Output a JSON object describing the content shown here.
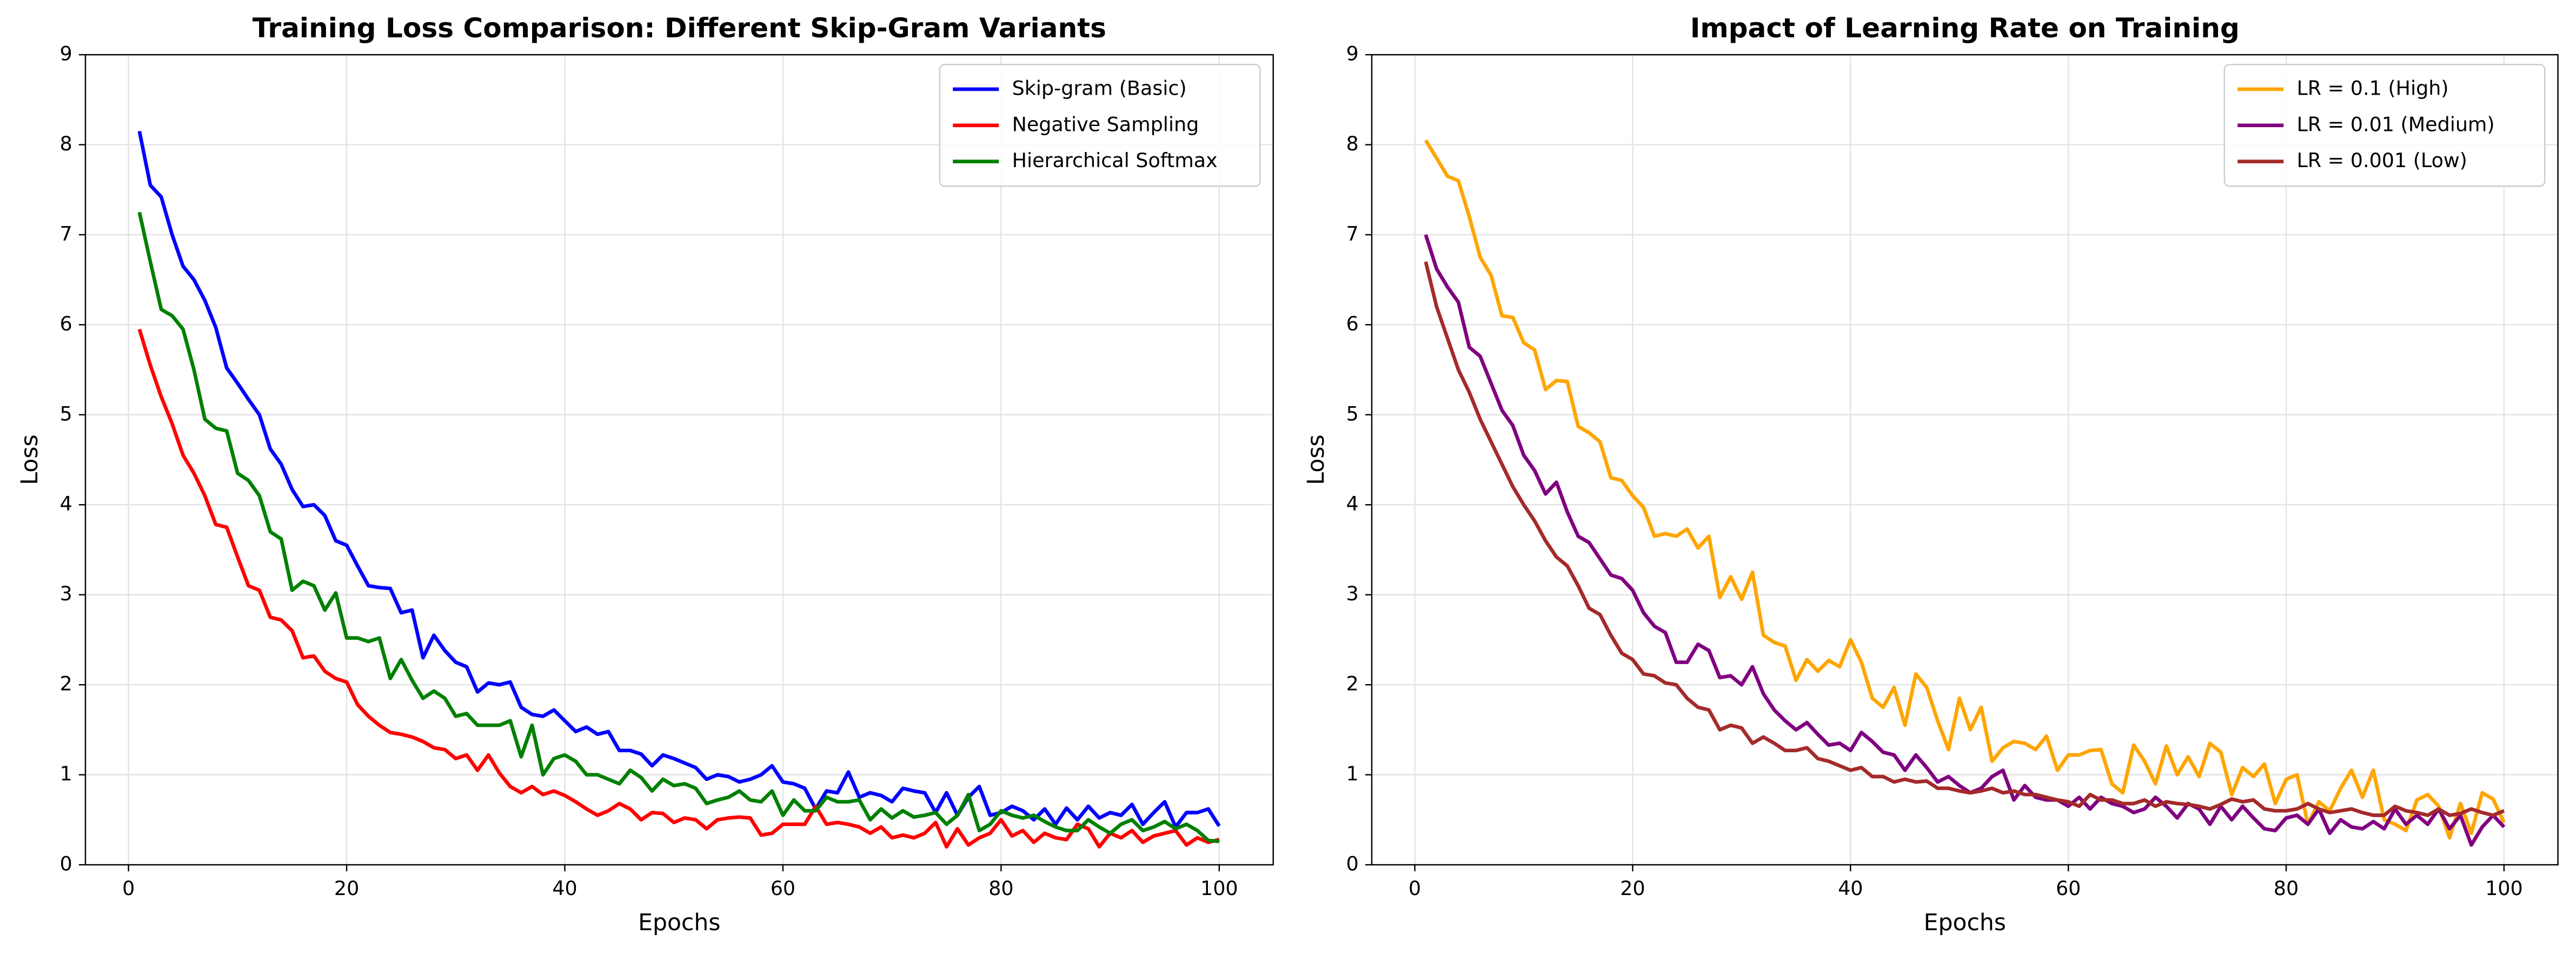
{
  "chart_data": [
    {
      "type": "line",
      "title": "Training Loss Comparison: Different Skip-Gram Variants",
      "x_label": "Epochs",
      "y_label": "Loss",
      "x": [
        1,
        2,
        3,
        4,
        5,
        6,
        7,
        8,
        9,
        10,
        11,
        12,
        13,
        14,
        15,
        16,
        17,
        18,
        19,
        20,
        21,
        22,
        23,
        24,
        25,
        26,
        27,
        28,
        29,
        30,
        31,
        32,
        33,
        34,
        35,
        36,
        37,
        38,
        39,
        40,
        41,
        42,
        43,
        44,
        45,
        46,
        47,
        48,
        49,
        50,
        51,
        52,
        53,
        54,
        55,
        56,
        57,
        58,
        59,
        60,
        61,
        62,
        63,
        64,
        65,
        66,
        67,
        68,
        69,
        70,
        71,
        72,
        73,
        74,
        75,
        76,
        77,
        78,
        79,
        80,
        81,
        82,
        83,
        84,
        85,
        86,
        87,
        88,
        89,
        90,
        91,
        92,
        93,
        94,
        95,
        96,
        97,
        98,
        99,
        100
      ],
      "xlim": [
        -3.95,
        104.95
      ],
      "xticks": [
        0,
        20,
        40,
        60,
        80,
        100
      ],
      "ylim": [
        0,
        9
      ],
      "yticks": [
        0,
        1,
        2,
        3,
        4,
        5,
        6,
        7,
        8,
        9
      ],
      "grid": true,
      "legend": "upper right",
      "series": [
        {
          "name": "Skip-gram (Basic)",
          "color": "#0000ff",
          "values": [
            8.15,
            7.55,
            7.42,
            7.0,
            6.65,
            6.5,
            6.27,
            5.97,
            5.52,
            5.35,
            5.17,
            5.0,
            4.62,
            4.45,
            4.17,
            3.98,
            4.0,
            3.88,
            3.6,
            3.55,
            3.32,
            3.1,
            3.08,
            3.07,
            2.8,
            2.83,
            2.3,
            2.55,
            2.38,
            2.25,
            2.2,
            1.92,
            2.02,
            2.0,
            2.03,
            1.75,
            1.67,
            1.65,
            1.72,
            1.6,
            1.48,
            1.53,
            1.45,
            1.48,
            1.27,
            1.27,
            1.23,
            1.1,
            1.22,
            1.18,
            1.13,
            1.08,
            0.95,
            1.0,
            0.98,
            0.92,
            0.95,
            1.0,
            1.1,
            0.92,
            0.9,
            0.85,
            0.62,
            0.82,
            0.8,
            1.03,
            0.75,
            0.8,
            0.77,
            0.7,
            0.85,
            0.82,
            0.8,
            0.58,
            0.8,
            0.55,
            0.75,
            0.87,
            0.55,
            0.58,
            0.65,
            0.6,
            0.5,
            0.62,
            0.45,
            0.63,
            0.5,
            0.65,
            0.52,
            0.58,
            0.55,
            0.67,
            0.45,
            0.58,
            0.7,
            0.42,
            0.58,
            0.58,
            0.62,
            0.43
          ]
        },
        {
          "name": "Negative Sampling",
          "color": "#ff0000",
          "values": [
            5.95,
            5.55,
            5.2,
            4.9,
            4.55,
            4.35,
            4.1,
            3.78,
            3.75,
            3.42,
            3.1,
            3.05,
            2.75,
            2.72,
            2.6,
            2.3,
            2.32,
            2.15,
            2.07,
            2.03,
            1.78,
            1.65,
            1.55,
            1.47,
            1.45,
            1.42,
            1.37,
            1.3,
            1.28,
            1.18,
            1.22,
            1.05,
            1.22,
            1.02,
            0.87,
            0.8,
            0.87,
            0.78,
            0.82,
            0.77,
            0.7,
            0.62,
            0.55,
            0.6,
            0.68,
            0.62,
            0.5,
            0.58,
            0.57,
            0.47,
            0.52,
            0.5,
            0.4,
            0.5,
            0.52,
            0.53,
            0.52,
            0.33,
            0.35,
            0.45,
            0.45,
            0.45,
            0.65,
            0.45,
            0.47,
            0.45,
            0.42,
            0.35,
            0.42,
            0.3,
            0.33,
            0.3,
            0.35,
            0.47,
            0.2,
            0.4,
            0.22,
            0.3,
            0.35,
            0.5,
            0.32,
            0.38,
            0.25,
            0.35,
            0.3,
            0.28,
            0.45,
            0.4,
            0.2,
            0.35,
            0.3,
            0.38,
            0.25,
            0.32,
            0.35,
            0.38,
            0.22,
            0.3,
            0.25,
            0.28
          ]
        },
        {
          "name": "Hierarchical Softmax",
          "color": "#008000",
          "values": [
            7.25,
            6.7,
            6.17,
            6.1,
            5.95,
            5.5,
            4.95,
            4.85,
            4.82,
            4.35,
            4.27,
            4.1,
            3.7,
            3.62,
            3.05,
            3.15,
            3.1,
            2.83,
            3.02,
            2.52,
            2.52,
            2.48,
            2.52,
            2.07,
            2.28,
            2.05,
            1.85,
            1.93,
            1.85,
            1.65,
            1.68,
            1.55,
            1.55,
            1.55,
            1.6,
            1.2,
            1.55,
            1.0,
            1.18,
            1.22,
            1.15,
            1.0,
            1.0,
            0.95,
            0.9,
            1.05,
            0.97,
            0.82,
            0.95,
            0.88,
            0.9,
            0.85,
            0.68,
            0.72,
            0.75,
            0.82,
            0.72,
            0.7,
            0.82,
            0.55,
            0.72,
            0.6,
            0.6,
            0.75,
            0.7,
            0.7,
            0.72,
            0.5,
            0.62,
            0.52,
            0.6,
            0.53,
            0.55,
            0.58,
            0.45,
            0.55,
            0.78,
            0.38,
            0.45,
            0.6,
            0.55,
            0.52,
            0.55,
            0.48,
            0.42,
            0.38,
            0.38,
            0.5,
            0.42,
            0.35,
            0.45,
            0.5,
            0.38,
            0.42,
            0.48,
            0.4,
            0.45,
            0.38,
            0.27,
            0.26
          ]
        }
      ]
    },
    {
      "type": "line",
      "title": "Impact of Learning Rate on Training",
      "x_label": "Epochs",
      "y_label": "Loss",
      "x": [
        1,
        2,
        3,
        4,
        5,
        6,
        7,
        8,
        9,
        10,
        11,
        12,
        13,
        14,
        15,
        16,
        17,
        18,
        19,
        20,
        21,
        22,
        23,
        24,
        25,
        26,
        27,
        28,
        29,
        30,
        31,
        32,
        33,
        34,
        35,
        36,
        37,
        38,
        39,
        40,
        41,
        42,
        43,
        44,
        45,
        46,
        47,
        48,
        49,
        50,
        51,
        52,
        53,
        54,
        55,
        56,
        57,
        58,
        59,
        60,
        61,
        62,
        63,
        64,
        65,
        66,
        67,
        68,
        69,
        70,
        71,
        72,
        73,
        74,
        75,
        76,
        77,
        78,
        79,
        80,
        81,
        82,
        83,
        84,
        85,
        86,
        87,
        88,
        89,
        90,
        91,
        92,
        93,
        94,
        95,
        96,
        97,
        98,
        99,
        100
      ],
      "xlim": [
        -3.95,
        104.95
      ],
      "xticks": [
        0,
        20,
        40,
        60,
        80,
        100
      ],
      "ylim": [
        0,
        9
      ],
      "yticks": [
        0,
        1,
        2,
        3,
        4,
        5,
        6,
        7,
        8,
        9
      ],
      "grid": true,
      "legend": "upper right",
      "series": [
        {
          "name": "LR = 0.1 (High)",
          "color": "#ffa500",
          "values": [
            8.05,
            7.85,
            7.65,
            7.6,
            7.2,
            6.75,
            6.55,
            6.1,
            6.08,
            5.8,
            5.72,
            5.28,
            5.38,
            5.37,
            4.87,
            4.8,
            4.7,
            4.3,
            4.27,
            4.1,
            3.97,
            3.65,
            3.68,
            3.65,
            3.73,
            3.52,
            3.65,
            2.97,
            3.2,
            2.95,
            3.25,
            2.55,
            2.47,
            2.43,
            2.05,
            2.28,
            2.15,
            2.27,
            2.2,
            2.5,
            2.25,
            1.85,
            1.75,
            1.97,
            1.55,
            2.12,
            1.97,
            1.6,
            1.28,
            1.85,
            1.5,
            1.75,
            1.15,
            1.3,
            1.37,
            1.35,
            1.28,
            1.43,
            1.05,
            1.22,
            1.22,
            1.27,
            1.28,
            0.9,
            0.8,
            1.33,
            1.15,
            0.9,
            1.32,
            1.0,
            1.2,
            0.98,
            1.35,
            1.25,
            0.78,
            1.08,
            0.98,
            1.12,
            0.68,
            0.95,
            1.0,
            0.45,
            0.7,
            0.6,
            0.85,
            1.05,
            0.75,
            1.05,
            0.5,
            0.45,
            0.38,
            0.72,
            0.78,
            0.65,
            0.3,
            0.68,
            0.35,
            0.8,
            0.73,
            0.47
          ]
        },
        {
          "name": "LR = 0.01 (Medium)",
          "color": "#800080",
          "values": [
            7.0,
            6.62,
            6.42,
            6.25,
            5.75,
            5.65,
            5.35,
            5.05,
            4.88,
            4.55,
            4.38,
            4.12,
            4.25,
            3.92,
            3.65,
            3.58,
            3.4,
            3.22,
            3.18,
            3.05,
            2.8,
            2.65,
            2.58,
            2.25,
            2.25,
            2.45,
            2.38,
            2.08,
            2.1,
            2.0,
            2.2,
            1.9,
            1.72,
            1.6,
            1.5,
            1.58,
            1.45,
            1.33,
            1.35,
            1.27,
            1.47,
            1.37,
            1.25,
            1.22,
            1.05,
            1.22,
            1.08,
            0.92,
            0.98,
            0.88,
            0.8,
            0.85,
            0.98,
            1.05,
            0.72,
            0.88,
            0.75,
            0.72,
            0.72,
            0.65,
            0.75,
            0.62,
            0.75,
            0.68,
            0.65,
            0.58,
            0.62,
            0.75,
            0.65,
            0.52,
            0.68,
            0.62,
            0.45,
            0.65,
            0.5,
            0.65,
            0.52,
            0.4,
            0.38,
            0.52,
            0.55,
            0.45,
            0.62,
            0.35,
            0.5,
            0.42,
            0.4,
            0.48,
            0.4,
            0.62,
            0.45,
            0.55,
            0.45,
            0.62,
            0.4,
            0.55,
            0.22,
            0.42,
            0.55,
            0.42
          ]
        },
        {
          "name": "LR = 0.001 (Low)",
          "color": "#a52a2a",
          "values": [
            6.7,
            6.2,
            5.85,
            5.5,
            5.25,
            4.95,
            4.7,
            4.45,
            4.2,
            4.0,
            3.82,
            3.6,
            3.42,
            3.32,
            3.1,
            2.85,
            2.78,
            2.55,
            2.35,
            2.28,
            2.12,
            2.1,
            2.02,
            2.0,
            1.85,
            1.75,
            1.72,
            1.5,
            1.55,
            1.52,
            1.35,
            1.42,
            1.35,
            1.27,
            1.27,
            1.3,
            1.18,
            1.15,
            1.1,
            1.05,
            1.08,
            0.98,
            0.98,
            0.92,
            0.95,
            0.92,
            0.93,
            0.85,
            0.85,
            0.82,
            0.8,
            0.82,
            0.85,
            0.8,
            0.82,
            0.78,
            0.78,
            0.75,
            0.72,
            0.7,
            0.65,
            0.78,
            0.72,
            0.72,
            0.68,
            0.68,
            0.72,
            0.65,
            0.7,
            0.68,
            0.67,
            0.65,
            0.62,
            0.67,
            0.73,
            0.7,
            0.72,
            0.62,
            0.6,
            0.6,
            0.62,
            0.68,
            0.62,
            0.58,
            0.6,
            0.62,
            0.58,
            0.55,
            0.55,
            0.65,
            0.6,
            0.58,
            0.55,
            0.62,
            0.55,
            0.57,
            0.62,
            0.58,
            0.55,
            0.6
          ]
        }
      ]
    }
  ]
}
